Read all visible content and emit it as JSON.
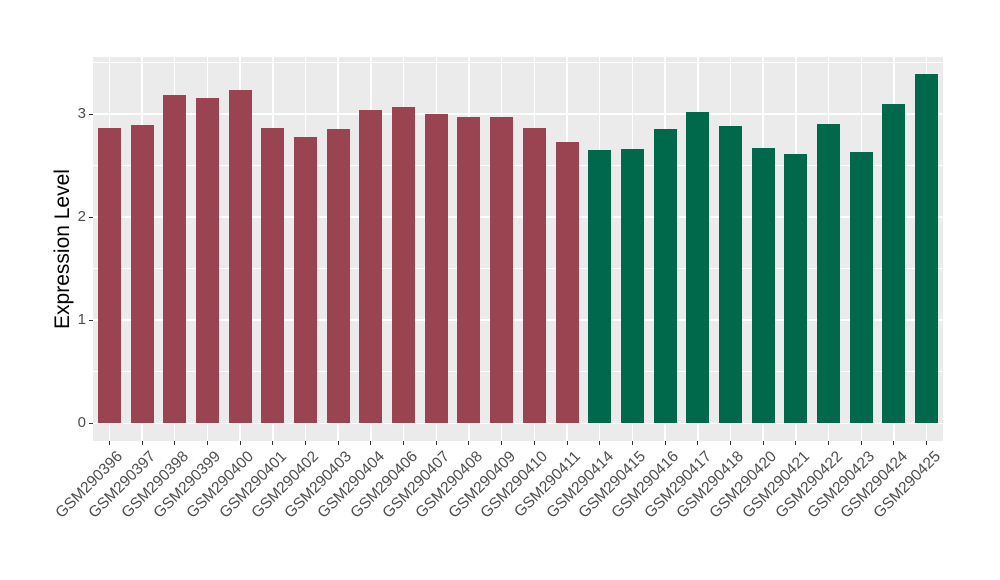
{
  "chart_data": {
    "type": "bar",
    "title": "",
    "xlabel": "",
    "ylabel": "Expression Level",
    "categories": [
      "GSM290396",
      "GSM290397",
      "GSM290398",
      "GSM290399",
      "GSM290400",
      "GSM290401",
      "GSM290402",
      "GSM290403",
      "GSM290404",
      "GSM290406",
      "GSM290407",
      "GSM290408",
      "GSM290409",
      "GSM290410",
      "GSM290411",
      "GSM290414",
      "GSM290415",
      "GSM290416",
      "GSM290417",
      "GSM290418",
      "GSM290420",
      "GSM290421",
      "GSM290422",
      "GSM290423",
      "GSM290424",
      "GSM290425"
    ],
    "values": [
      2.86,
      2.89,
      3.18,
      3.16,
      3.23,
      2.86,
      2.78,
      2.85,
      3.04,
      3.07,
      3.0,
      2.97,
      2.97,
      2.86,
      2.73,
      2.65,
      2.66,
      2.85,
      3.02,
      2.88,
      2.67,
      2.61,
      2.9,
      2.63,
      3.1,
      3.39
    ],
    "group_split_index": 15,
    "colors": {
      "group_a": "#9A4452",
      "group_b": "#00694B"
    },
    "yticks": [
      0,
      1,
      2,
      3
    ],
    "minor_gridlines": [
      0.5,
      1.5,
      2.5,
      3.5
    ],
    "ylim": [
      -0.17,
      3.55
    ],
    "grid": "white major+minor on gray panel",
    "panel_background": "#EBEBEB",
    "gridline_color": "#FFFFFF",
    "axis_text_color": "#4D4D4D",
    "axis_title_color": "#000000",
    "tick_mark_color": "#333333",
    "x_label_rotation_deg": 45,
    "legend_position": "none"
  }
}
